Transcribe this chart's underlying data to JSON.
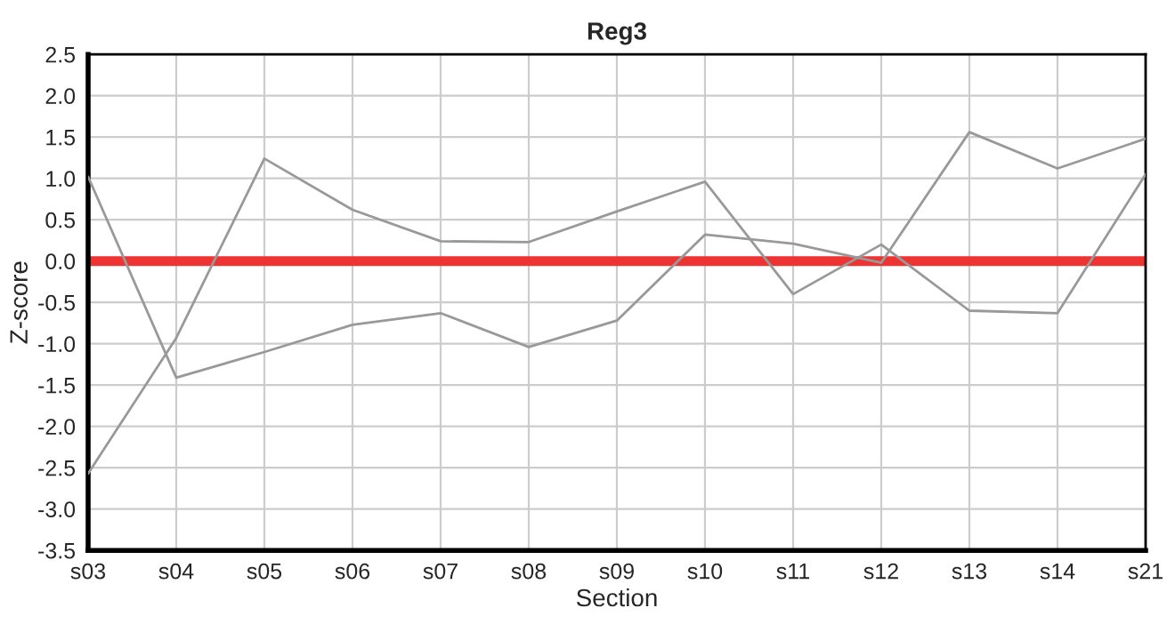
{
  "chart_data": {
    "type": "line",
    "title": "Reg3",
    "xlabel": "Section",
    "ylabel": "Z-score",
    "categories": [
      "s03",
      "s04",
      "s05",
      "s06",
      "s07",
      "s08",
      "s09",
      "s10",
      "s11",
      "s12",
      "s13",
      "s14",
      "s21"
    ],
    "series": [
      {
        "color": "#999999",
        "values": [
          1.02,
          -1.41,
          -1.1,
          -0.77,
          -0.63,
          -1.04,
          -0.72,
          0.32,
          0.21,
          -0.02,
          1.56,
          1.12,
          1.48
        ]
      },
      {
        "color": "#999999",
        "values": [
          -2.57,
          -0.93,
          1.24,
          0.62,
          0.24,
          0.23,
          0.6,
          0.96,
          -0.4,
          0.2,
          -0.6,
          -0.63,
          1.05
        ]
      }
    ],
    "ylim": [
      -3.5,
      2.5
    ],
    "yticks": [
      {
        "value": -3.5,
        "label": "-3.5"
      },
      {
        "value": -3,
        "label": "-3.0"
      },
      {
        "value": -2.5,
        "label": "-2.5"
      },
      {
        "value": -2,
        "label": "-2.0"
      },
      {
        "value": -1.5,
        "label": "-1.5"
      },
      {
        "value": -1,
        "label": "-1.0"
      },
      {
        "value": -0.5,
        "label": "-0.5"
      },
      {
        "value": 0,
        "label": "0.0"
      },
      {
        "value": 0.5,
        "label": "0.5"
      },
      {
        "value": 1,
        "label": "1.0"
      },
      {
        "value": 1.5,
        "label": "1.5"
      },
      {
        "value": 2,
        "label": "2.0"
      },
      {
        "value": 2.5,
        "label": "2.5"
      }
    ],
    "ref_lines": [
      {
        "axis": "y",
        "value": 0,
        "color": "#ee3333"
      }
    ],
    "grid": true,
    "marker": "none",
    "line_style": "solid"
  }
}
